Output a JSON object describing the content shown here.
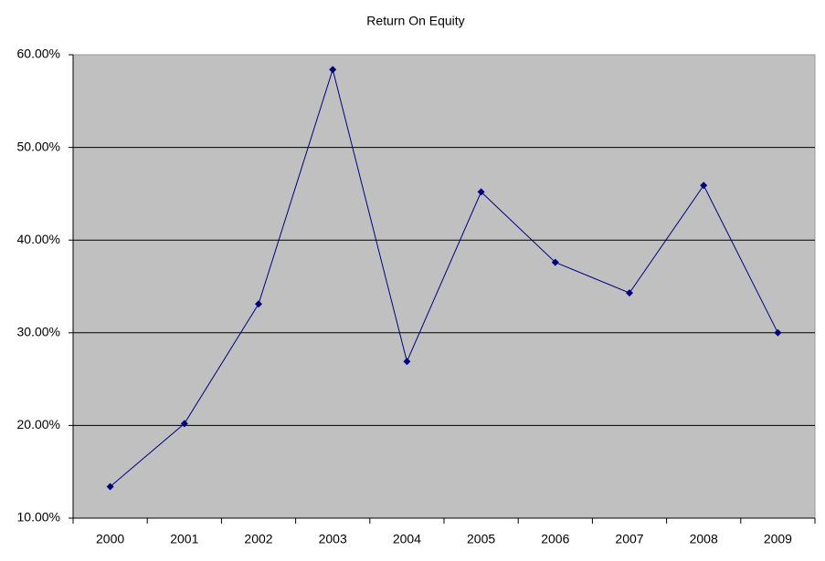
{
  "chart_data": {
    "type": "line",
    "title": "Return On Equity",
    "categories": [
      "2000",
      "2001",
      "2002",
      "2003",
      "2004",
      "2005",
      "2006",
      "2007",
      "2008",
      "2009"
    ],
    "series": [
      {
        "name": "Return On Equity",
        "color": "#000080",
        "values": [
          13.4,
          20.2,
          33.1,
          58.4,
          26.9,
          45.2,
          37.6,
          34.3,
          45.9,
          30.0
        ]
      }
    ],
    "ylim": [
      10,
      60
    ],
    "yticks": [
      {
        "value": 10,
        "label": "10.00%"
      },
      {
        "value": 20,
        "label": "20.00%"
      },
      {
        "value": 30,
        "label": "30.00%"
      },
      {
        "value": 40,
        "label": "40.00%"
      },
      {
        "value": 50,
        "label": "50.00%"
      },
      {
        "value": 60,
        "label": "60.00%"
      }
    ],
    "grid": true,
    "plot_background": "#c0c0c0"
  }
}
